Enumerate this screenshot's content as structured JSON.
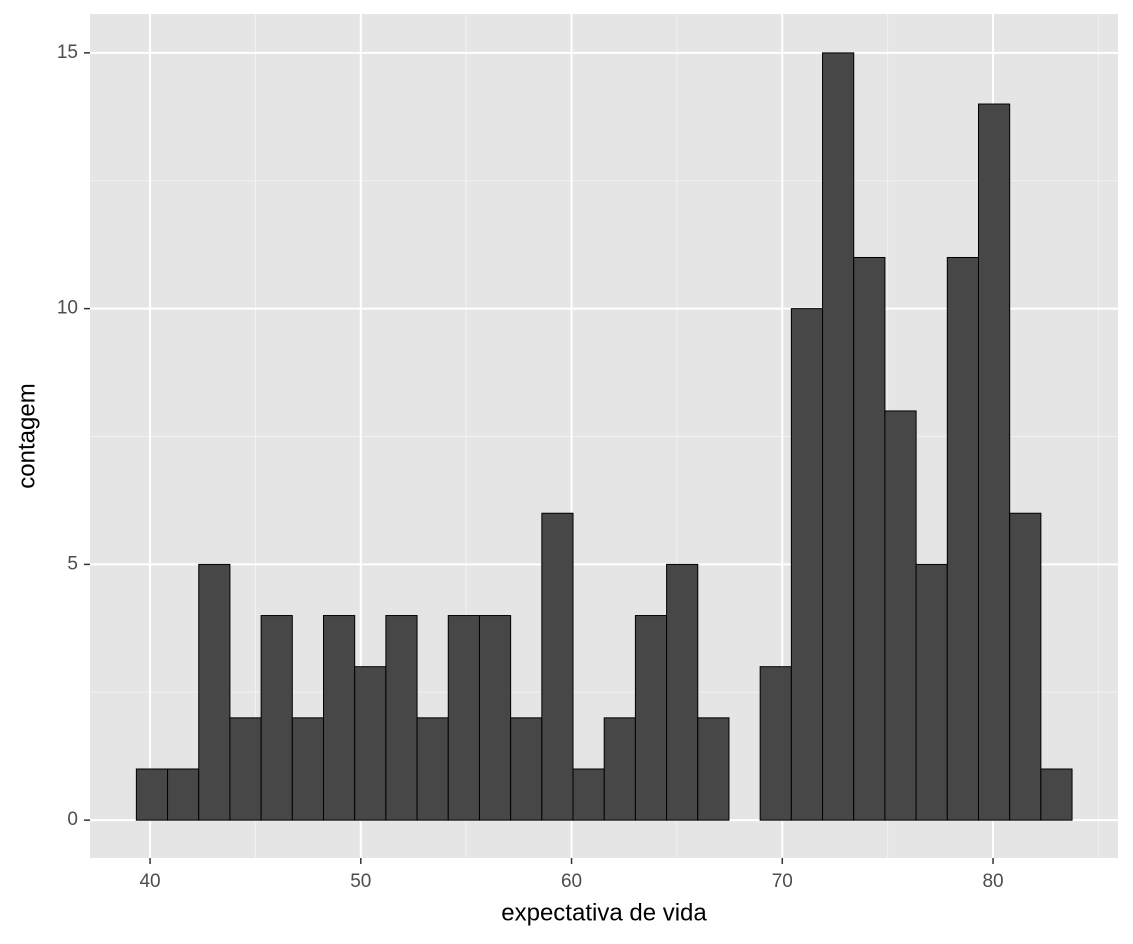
{
  "chart_data": {
    "type": "histogram",
    "x_label": "expectativa de vida",
    "y_label": "contagem",
    "bins": [
      39.35,
      40.83,
      42.31,
      43.79,
      45.27,
      46.75,
      48.23,
      49.71,
      51.19,
      52.67,
      54.15,
      55.63,
      57.11,
      58.59,
      60.07,
      61.55,
      63.03,
      64.51,
      65.99,
      67.47,
      68.95,
      70.43,
      71.91,
      73.39,
      74.87,
      76.35,
      77.83,
      79.31,
      80.79,
      82.27,
      83.75
    ],
    "values": [
      1,
      1,
      5,
      2,
      4,
      2,
      4,
      3,
      4,
      2,
      4,
      4,
      2,
      6,
      1,
      2,
      4,
      5,
      2,
      0,
      3,
      10,
      15,
      11,
      8,
      5,
      11,
      14,
      6,
      1
    ],
    "color": "#474747",
    "xlim": [
      37.15,
      85.93
    ],
    "ylim": [
      -0.74,
      15.76
    ],
    "xticks": [
      40,
      50,
      60,
      70,
      80
    ],
    "yticks": [
      0,
      5,
      10,
      15
    ],
    "grid": true,
    "minor_grid": true
  }
}
